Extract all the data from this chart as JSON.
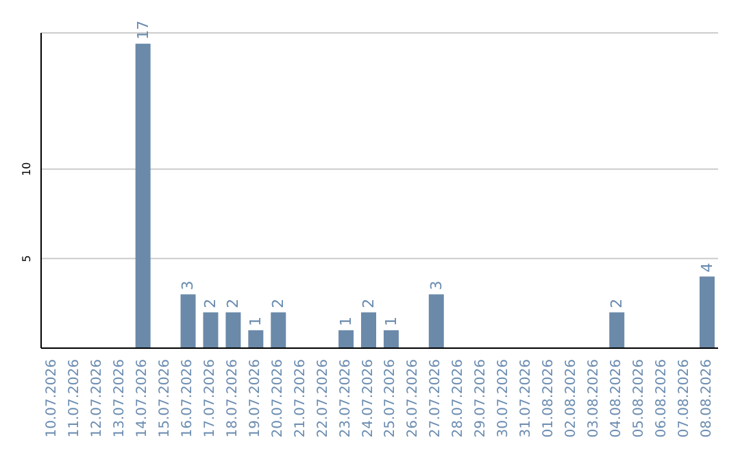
{
  "chart_data": {
    "type": "bar",
    "categories": [
      "10.07.2026",
      "11.07.2026",
      "12.07.2026",
      "13.07.2026",
      "14.07.2026",
      "15.07.2026",
      "16.07.2026",
      "17.07.2026",
      "18.07.2026",
      "19.07.2026",
      "20.07.2026",
      "21.07.2026",
      "22.07.2026",
      "23.07.2026",
      "24.07.2026",
      "25.07.2026",
      "26.07.2026",
      "27.07.2026",
      "28.07.2026",
      "29.07.2026",
      "30.07.2026",
      "31.07.2026",
      "01.08.2026",
      "02.08.2026",
      "03.08.2026",
      "04.08.2026",
      "05.08.2026",
      "06.08.2026",
      "07.08.2026",
      "08.08.2026"
    ],
    "values": [
      0,
      0,
      0,
      0,
      17,
      0,
      3,
      2,
      2,
      1,
      2,
      0,
      0,
      1,
      2,
      1,
      0,
      3,
      0,
      0,
      0,
      0,
      0,
      0,
      0,
      2,
      0,
      0,
      0,
      4
    ],
    "value_labels": [
      null,
      null,
      null,
      null,
      "17",
      null,
      "3",
      "2",
      "2",
      "1",
      "2",
      null,
      null,
      "1",
      "2",
      "1",
      null,
      "3",
      null,
      null,
      null,
      null,
      null,
      null,
      null,
      "2",
      null,
      null,
      null,
      "4"
    ],
    "color": "#6b8aaa",
    "ylim": [
      0,
      17.6
    ],
    "yticks": [
      5,
      10
    ],
    "grid": "y"
  }
}
